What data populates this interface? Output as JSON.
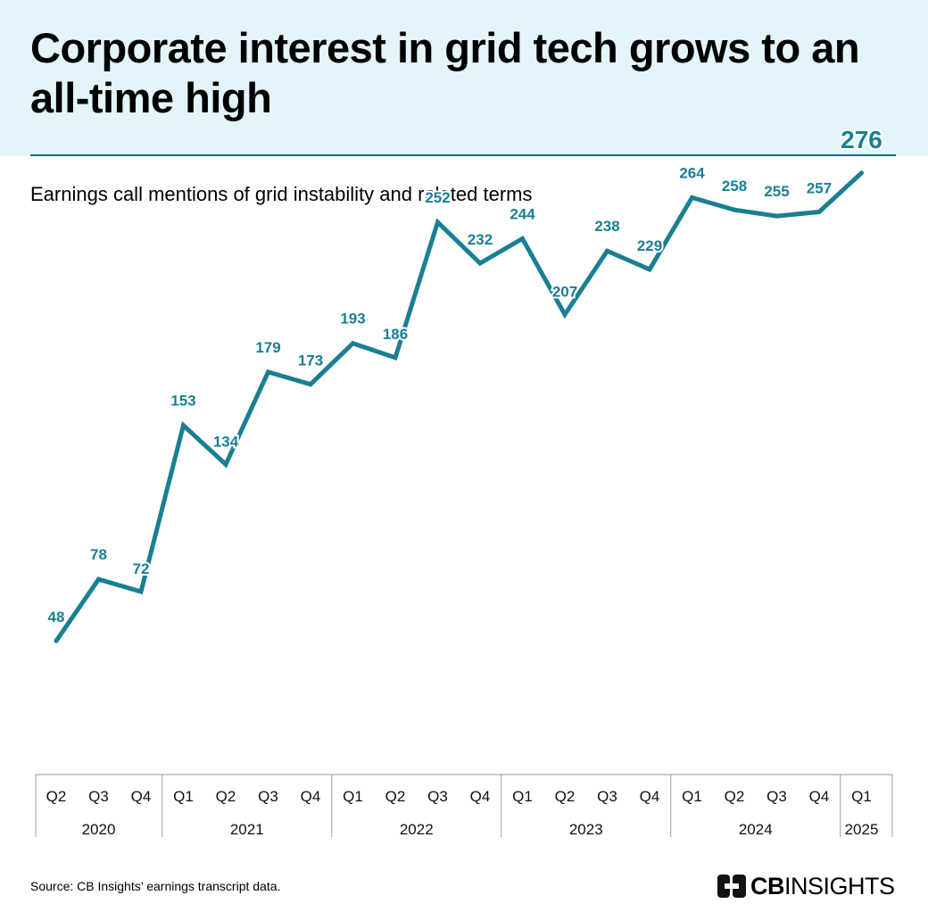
{
  "title": "Corporate interest in grid tech grows to an all-time high",
  "subtitle": "Earnings call mentions of grid instability and related terms",
  "source": "Source: CB Insights’ earnings transcript data.",
  "logo": {
    "bold": "CB",
    "light": "INSIGHTS",
    "icon": "cb-insights-logo-icon"
  },
  "colors": {
    "line": "#197f93",
    "label": "#197f93",
    "header_bg": "#e3f5fa",
    "rule": "#1a6e82"
  },
  "chart_data": {
    "type": "line",
    "title": "Corporate interest in grid tech grows to an all-time high",
    "ylabel": "Earnings call mentions of grid instability and related terms",
    "xlabel": "",
    "grid": false,
    "categories": [
      "Q2",
      "Q3",
      "Q4",
      "Q1",
      "Q2",
      "Q3",
      "Q4",
      "Q1",
      "Q2",
      "Q3",
      "Q4",
      "Q1",
      "Q2",
      "Q3",
      "Q4",
      "Q1",
      "Q2",
      "Q3",
      "Q4",
      "Q1"
    ],
    "years": [
      {
        "label": "2020",
        "start": 0,
        "count": 3
      },
      {
        "label": "2021",
        "start": 3,
        "count": 4
      },
      {
        "label": "2022",
        "start": 7,
        "count": 4
      },
      {
        "label": "2023",
        "start": 11,
        "count": 4
      },
      {
        "label": "2024",
        "start": 15,
        "count": 4
      },
      {
        "label": "2025",
        "start": 19,
        "count": 1
      }
    ],
    "values": [
      48,
      78,
      72,
      153,
      134,
      179,
      173,
      193,
      186,
      252,
      232,
      244,
      207,
      238,
      229,
      264,
      258,
      255,
      257,
      276
    ],
    "ylim": [
      0,
      300
    ]
  }
}
